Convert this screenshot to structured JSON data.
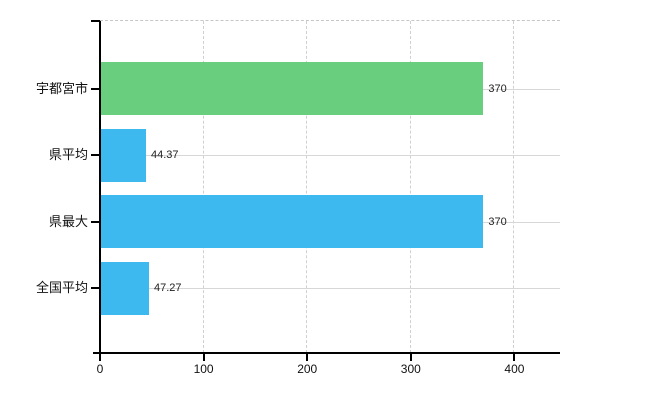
{
  "chart_data": {
    "type": "bar",
    "orientation": "horizontal",
    "title": "",
    "xlabel": "",
    "ylabel": "",
    "categories": [
      "宇都宮市",
      "県平均",
      "県最大",
      "全国平均"
    ],
    "values": [
      370,
      44.37,
      370,
      47.27
    ],
    "value_labels": [
      "370",
      "44.37",
      "370",
      "47.27"
    ],
    "bar_colors": [
      "#69ce7d",
      "#3eb9f0",
      "#3eb9f0",
      "#3eb9f0"
    ],
    "x_ticks": [
      0,
      100,
      200,
      300,
      400
    ],
    "x_tick_labels": [
      "0",
      "100",
      "200",
      "300",
      "400"
    ],
    "xlim": [
      0,
      444
    ],
    "grid": true,
    "legend": "none",
    "colors": {
      "green_bar": "#69ce7d",
      "blue_bar": "#3eb9f0",
      "gridline": "#d7d7d7",
      "dashed_border": "#c6c6c6",
      "axis": "#000000",
      "text": "#111111",
      "background": "#ffffff"
    }
  }
}
